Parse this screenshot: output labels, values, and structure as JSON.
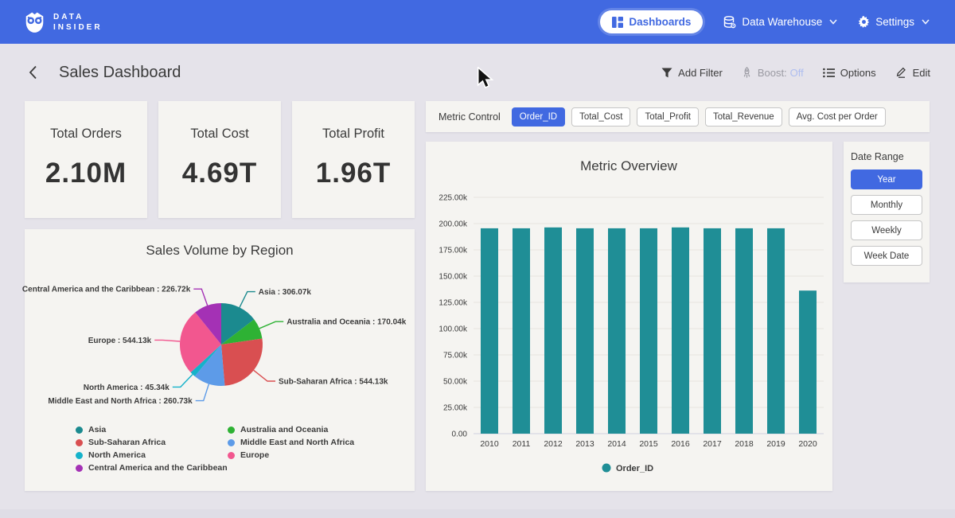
{
  "nav": {
    "brand_line1": "DATA",
    "brand_line2": "INSIDER",
    "dashboards_label": "Dashboards",
    "warehouse_label": "Data Warehouse",
    "settings_label": "Settings"
  },
  "header": {
    "title": "Sales Dashboard",
    "add_filter_label": "Add Filter",
    "boost_label": "Boost:",
    "boost_value": "Off",
    "options_label": "Options",
    "edit_label": "Edit"
  },
  "kpis": [
    {
      "label": "Total Orders",
      "value": "2.10M"
    },
    {
      "label": "Total Cost",
      "value": "4.69T"
    },
    {
      "label": "Total Profit",
      "value": "1.96T"
    }
  ],
  "metric_control": {
    "label": "Metric Control",
    "options": [
      {
        "label": "Order_ID",
        "selected": true
      },
      {
        "label": "Total_Cost",
        "selected": false
      },
      {
        "label": "Total_Profit",
        "selected": false
      },
      {
        "label": "Total_Revenue",
        "selected": false
      },
      {
        "label": "Avg. Cost per Order",
        "selected": false
      }
    ]
  },
  "date_range": {
    "label": "Date Range",
    "options": [
      {
        "label": "Year",
        "selected": true
      },
      {
        "label": "Monthly",
        "selected": false
      },
      {
        "label": "Weekly",
        "selected": false
      },
      {
        "label": "Week Date",
        "selected": false
      }
    ]
  },
  "colors": {
    "accent": "#4169e1",
    "page_bg": "#e5e3ea",
    "card_bg": "#f5f4f1",
    "bar": "#1f8e96",
    "boost_off": "#aebdf0",
    "grid_line": "#e9e8e4",
    "zero_line": "#d8d8e2",
    "text": "#3b3b3b"
  },
  "chart_data": [
    {
      "type": "pie",
      "title": "Sales Volume by Region",
      "labels": [
        "Asia",
        "Australia and Oceania",
        "Sub-Saharan Africa",
        "Middle East and North Africa",
        "North America",
        "Europe",
        "Central America and the Caribbean"
      ],
      "values": [
        306.07,
        170.04,
        544.13,
        260.73,
        45.34,
        544.13,
        226.72
      ],
      "value_texts": [
        "306.07k",
        "170.04k",
        "544.13k",
        "260.73k",
        "45.34k",
        "544.13k",
        "226.72k"
      ],
      "unit": "k",
      "colors": [
        "#1b8a8f",
        "#2eb234",
        "#d94f51",
        "#5d9be8",
        "#15b2ca",
        "#f2578f",
        "#a431b5"
      ],
      "start_angle_deg": 0,
      "legend_position": "bottom",
      "legend_columns": [
        [
          "Asia",
          "Sub-Saharan Africa",
          "North America",
          "Central America and the Caribbean"
        ],
        [
          "Australia and Oceania",
          "Middle East and North Africa",
          "Europe"
        ]
      ]
    },
    {
      "type": "bar",
      "title": "Metric Overview",
      "categories": [
        "2010",
        "2011",
        "2012",
        "2013",
        "2014",
        "2015",
        "2016",
        "2017",
        "2018",
        "2019",
        "2020"
      ],
      "series": [
        {
          "name": "Order_ID",
          "values": [
            195.5,
            195.5,
            196.4,
            195.5,
            195.5,
            195.5,
            196.4,
            195.5,
            195.5,
            195.5,
            136.2
          ]
        }
      ],
      "unit": "k",
      "ylim": [
        0,
        225
      ],
      "ytick_step": 25,
      "ytick_labels": [
        "0.00",
        "25.00k",
        "50.00k",
        "75.00k",
        "100.00k",
        "125.00k",
        "150.00k",
        "175.00k",
        "200.00k",
        "225.00k"
      ],
      "grid": true,
      "legend_position": "bottom"
    }
  ]
}
